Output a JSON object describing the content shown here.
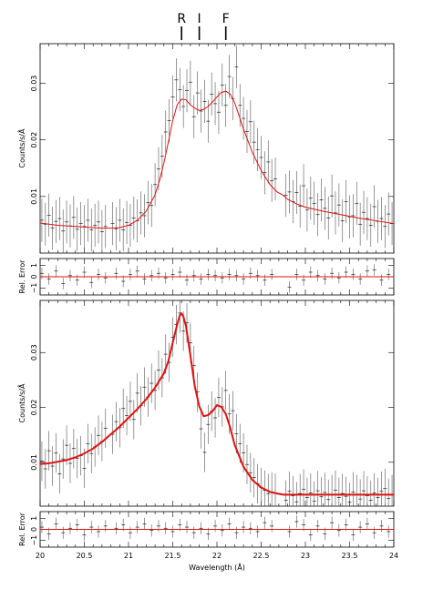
{
  "chart_data": [
    {
      "type": "scatter",
      "title": "",
      "xlabel": "",
      "ylabel": "Counts/s/Å",
      "xlim": [
        20,
        24
      ],
      "ylim": [
        0.0,
        0.037
      ],
      "yticks": [
        0.01,
        0.02,
        0.03
      ],
      "yticklabels": [
        "0.01",
        "0.02",
        "0.03"
      ],
      "markers": [
        {
          "label": "R",
          "x": 21.6
        },
        {
          "label": "I",
          "x": 21.8
        },
        {
          "label": "F",
          "x": 22.1
        }
      ],
      "gaps": [
        [
          20.76,
          20.8
        ],
        [
          22.68,
          22.75
        ]
      ],
      "series": [
        {
          "role": "data",
          "x": [
            20.02,
            20.06,
            20.1,
            20.14,
            20.18,
            20.22,
            20.26,
            20.3,
            20.34,
            20.38,
            20.42,
            20.46,
            20.5,
            20.54,
            20.58,
            20.62,
            20.66,
            20.7,
            20.74,
            20.82,
            20.86,
            20.9,
            20.94,
            20.98,
            21.02,
            21.06,
            21.1,
            21.14,
            21.18,
            21.22,
            21.26,
            21.3,
            21.34,
            21.38,
            21.42,
            21.46,
            21.5,
            21.54,
            21.58,
            21.62,
            21.66,
            21.7,
            21.74,
            21.78,
            21.82,
            21.86,
            21.9,
            21.94,
            21.98,
            22.02,
            22.06,
            22.1,
            22.14,
            22.18,
            22.22,
            22.26,
            22.3,
            22.34,
            22.38,
            22.42,
            22.46,
            22.5,
            22.54,
            22.58,
            22.62,
            22.66,
            22.78,
            22.82,
            22.86,
            22.9,
            22.94,
            22.98,
            23.02,
            23.06,
            23.1,
            23.14,
            23.18,
            23.22,
            23.26,
            23.3,
            23.34,
            23.38,
            23.42,
            23.46,
            23.5,
            23.54,
            23.58,
            23.62,
            23.66,
            23.7,
            23.74,
            23.78,
            23.82,
            23.86,
            23.9,
            23.94,
            23.98
          ],
          "y": [
            0.0058,
            0.0051,
            0.0067,
            0.0044,
            0.0056,
            0.0061,
            0.0039,
            0.0055,
            0.0048,
            0.0063,
            0.0042,
            0.0052,
            0.0047,
            0.0058,
            0.0041,
            0.0049,
            0.0055,
            0.0038,
            0.0047,
            0.0052,
            0.0043,
            0.0058,
            0.0041,
            0.0054,
            0.0049,
            0.0062,
            0.0057,
            0.0071,
            0.0066,
            0.0089,
            0.0084,
            0.0121,
            0.0149,
            0.0171,
            0.0214,
            0.0234,
            0.0276,
            0.0306,
            0.0289,
            0.0259,
            0.0287,
            0.0302,
            0.0241,
            0.0283,
            0.0251,
            0.0268,
            0.0233,
            0.0281,
            0.0264,
            0.0249,
            0.0297,
            0.0261,
            0.0312,
            0.0273,
            0.0329,
            0.0261,
            0.0238,
            0.0215,
            0.0232,
            0.0196,
            0.0183,
            0.0169,
            0.0142,
            0.0161,
            0.0128,
            0.0131,
            0.0102,
            0.0108,
            0.0091,
            0.0107,
            0.0083,
            0.0119,
            0.0076,
            0.0097,
            0.0088,
            0.0068,
            0.0094,
            0.0079,
            0.0062,
            0.0101,
            0.0071,
            0.0085,
            0.0057,
            0.0091,
            0.0064,
            0.0066,
            0.0088,
            0.0051,
            0.0072,
            0.0061,
            0.0049,
            0.0082,
            0.0056,
            0.0061,
            0.0047,
            0.0069,
            0.0052
          ],
          "yerr": 0.0038
        },
        {
          "role": "model",
          "x": [
            20.0,
            20.1,
            20.2,
            20.3,
            20.4,
            20.5,
            20.6,
            20.7,
            20.75,
            20.8,
            20.9,
            21.0,
            21.1,
            21.2,
            21.3,
            21.35,
            21.4,
            21.45,
            21.5,
            21.55,
            21.6,
            21.65,
            21.7,
            21.75,
            21.8,
            21.85,
            21.9,
            21.95,
            22.0,
            22.05,
            22.1,
            22.15,
            22.2,
            22.25,
            22.3,
            22.4,
            22.5,
            22.6,
            22.68,
            22.75,
            22.8,
            22.9,
            23.0,
            23.2,
            23.4,
            23.6,
            23.8,
            24.0
          ],
          "y": [
            0.0053,
            0.0051,
            0.0049,
            0.0048,
            0.0047,
            0.0046,
            0.0045,
            0.0044,
            0.0044,
            0.0044,
            0.0045,
            0.0049,
            0.0058,
            0.0074,
            0.0103,
            0.0128,
            0.0159,
            0.0196,
            0.0234,
            0.0262,
            0.0272,
            0.0271,
            0.0262,
            0.0256,
            0.0252,
            0.0254,
            0.0259,
            0.0267,
            0.0276,
            0.0284,
            0.0286,
            0.0281,
            0.0266,
            0.0243,
            0.0219,
            0.0178,
            0.0146,
            0.0121,
            0.0108,
            0.0102,
            0.0095,
            0.0087,
            0.0081,
            0.0074,
            0.0068,
            0.0062,
            0.0057,
            0.0052
          ]
        }
      ]
    },
    {
      "type": "scatter",
      "title": "",
      "xlabel": "",
      "ylabel": "Rel. Error",
      "xlim": [
        20,
        24
      ],
      "ylim": [
        -1.6,
        1.6
      ],
      "yticks": [
        -1,
        0,
        1
      ],
      "yticklabels": [
        "−1",
        "0",
        "1"
      ],
      "series": [
        {
          "role": "data",
          "x": [
            20.02,
            20.1,
            20.18,
            20.26,
            20.34,
            20.42,
            20.5,
            20.58,
            20.66,
            20.74,
            20.86,
            20.94,
            21.02,
            21.1,
            21.18,
            21.26,
            21.34,
            21.42,
            21.5,
            21.58,
            21.66,
            21.74,
            21.82,
            21.9,
            21.98,
            22.06,
            22.14,
            22.22,
            22.3,
            22.38,
            22.46,
            22.54,
            22.62,
            22.82,
            22.9,
            22.98,
            23.06,
            23.14,
            23.22,
            23.3,
            23.38,
            23.46,
            23.54,
            23.62,
            23.7,
            23.78,
            23.86,
            23.94
          ],
          "y": [
            0.3,
            -0.2,
            0.5,
            -0.6,
            0.1,
            -0.3,
            0.4,
            -0.5,
            0.2,
            -0.1,
            0.3,
            -0.4,
            0.2,
            0.5,
            -0.2,
            0.1,
            0.3,
            -0.1,
            0.2,
            0.4,
            -0.3,
            0.1,
            -0.2,
            0.2,
            0.1,
            -0.1,
            0.2,
            0.1,
            -0.2,
            0.3,
            0.1,
            -0.3,
            0.2,
            -0.9,
            0.2,
            -0.3,
            0.4,
            0.1,
            -0.2,
            0.3,
            -0.1,
            0.4,
            0.2,
            -0.2,
            0.5,
            0.6,
            -0.3,
            0.2
          ],
          "yerr": 0.5
        },
        {
          "role": "model",
          "x": [
            20,
            24
          ],
          "y": [
            0,
            0
          ]
        }
      ]
    },
    {
      "type": "scatter",
      "title": "",
      "xlabel": "",
      "ylabel": "Counts/s/Å",
      "xlim": [
        20,
        24
      ],
      "ylim": [
        0.002,
        0.0395
      ],
      "yticks": [
        0.01,
        0.02,
        0.03
      ],
      "yticklabels": [
        "0.01",
        "0.02",
        "0.03"
      ],
      "gaps": [
        [
          20.76,
          20.8
        ],
        [
          22.68,
          22.75
        ]
      ],
      "series": [
        {
          "role": "data",
          "x": [
            20.02,
            20.06,
            20.1,
            20.14,
            20.18,
            20.22,
            20.26,
            20.3,
            20.34,
            20.38,
            20.42,
            20.46,
            20.5,
            20.54,
            20.58,
            20.62,
            20.66,
            20.7,
            20.74,
            20.82,
            20.86,
            20.9,
            20.94,
            20.98,
            21.02,
            21.06,
            21.1,
            21.14,
            21.18,
            21.22,
            21.26,
            21.3,
            21.34,
            21.38,
            21.42,
            21.46,
            21.5,
            21.54,
            21.58,
            21.62,
            21.66,
            21.7,
            21.74,
            21.78,
            21.82,
            21.86,
            21.9,
            21.94,
            21.98,
            22.02,
            22.06,
            22.1,
            22.14,
            22.18,
            22.22,
            22.26,
            22.3,
            22.34,
            22.38,
            22.42,
            22.46,
            22.5,
            22.54,
            22.58,
            22.62,
            22.66,
            22.78,
            22.82,
            22.86,
            22.9,
            22.94,
            22.98,
            23.02,
            23.06,
            23.1,
            23.14,
            23.18,
            23.22,
            23.26,
            23.3,
            23.34,
            23.38,
            23.42,
            23.46,
            23.5,
            23.54,
            23.58,
            23.62,
            23.66,
            23.7,
            23.74,
            23.78,
            23.82,
            23.86,
            23.9,
            23.94,
            23.98
          ],
          "y": [
            0.0102,
            0.0088,
            0.0121,
            0.0093,
            0.0117,
            0.0079,
            0.0106,
            0.0131,
            0.0098,
            0.0125,
            0.0107,
            0.0112,
            0.0089,
            0.0134,
            0.0116,
            0.0128,
            0.0149,
            0.0138,
            0.0162,
            0.0151,
            0.0174,
            0.0163,
            0.0198,
            0.0185,
            0.0211,
            0.0178,
            0.0226,
            0.0203,
            0.0237,
            0.0219,
            0.0244,
            0.0231,
            0.0268,
            0.0254,
            0.0297,
            0.0282,
            0.0328,
            0.0351,
            0.0372,
            0.0339,
            0.0354,
            0.0318,
            0.0276,
            0.0228,
            0.0161,
            0.0118,
            0.0169,
            0.0193,
            0.0181,
            0.0218,
            0.0201,
            0.0231,
            0.0188,
            0.0194,
            0.0152,
            0.0134,
            0.0117,
            0.0096,
            0.0081,
            0.0072,
            0.0061,
            0.0054,
            0.0049,
            0.0043,
            0.0046,
            0.0044,
            0.0031,
            0.0047,
            0.0039,
            0.0028,
            0.0043,
            0.0051,
            0.0036,
            0.0044,
            0.0029,
            0.0048,
            0.0037,
            0.0045,
            0.0032,
            0.0041,
            0.0049,
            0.0036,
            0.0043,
            0.0038,
            0.0027,
            0.0046,
            0.0041,
            0.0033,
            0.0048,
            0.0039,
            0.0031,
            0.0044,
            0.0036,
            0.0047,
            0.0052,
            0.0034,
            0.0041
          ],
          "yerr": 0.0036
        },
        {
          "role": "model",
          "x": [
            20.0,
            20.1,
            20.2,
            20.3,
            20.4,
            20.5,
            20.6,
            20.7,
            20.75,
            20.8,
            20.9,
            21.0,
            21.1,
            21.2,
            21.3,
            21.4,
            21.45,
            21.5,
            21.55,
            21.58,
            21.6,
            21.62,
            21.65,
            21.7,
            21.75,
            21.8,
            21.85,
            21.9,
            21.95,
            22.0,
            22.05,
            22.1,
            22.15,
            22.2,
            22.3,
            22.4,
            22.5,
            22.6,
            22.68,
            22.75,
            22.8,
            22.9,
            23.0,
            23.2,
            23.4,
            23.6,
            23.8,
            24.0
          ],
          "y": [
            0.0097,
            0.0098,
            0.0101,
            0.0104,
            0.0109,
            0.0116,
            0.0125,
            0.0137,
            0.0144,
            0.0151,
            0.0165,
            0.0181,
            0.0197,
            0.0215,
            0.0236,
            0.0262,
            0.0284,
            0.0318,
            0.0351,
            0.0368,
            0.0371,
            0.0366,
            0.0348,
            0.0294,
            0.0238,
            0.0202,
            0.0184,
            0.0186,
            0.0193,
            0.0204,
            0.0201,
            0.0188,
            0.0163,
            0.0132,
            0.0092,
            0.0068,
            0.0054,
            0.0046,
            0.0043,
            0.0041,
            0.0041,
            0.0041,
            0.0041,
            0.0041,
            0.0041,
            0.0041,
            0.0041,
            0.0041
          ]
        }
      ]
    },
    {
      "type": "scatter",
      "title": "",
      "xlabel": "Wavelength (Å)",
      "ylabel": "Rel. Error",
      "xlim": [
        20,
        24
      ],
      "ylim": [
        -1.6,
        1.6
      ],
      "yticks": [
        -1,
        0,
        1
      ],
      "yticklabels": [
        "−1",
        "0",
        "1"
      ],
      "xticks": [
        20,
        20.5,
        21,
        21.5,
        22,
        22.5,
        23,
        23.5,
        24
      ],
      "xticklabels": [
        "20",
        "20.5",
        "21",
        "21.5",
        "22",
        "22.5",
        "23",
        "23.5",
        "24"
      ],
      "series": [
        {
          "role": "data",
          "x": [
            20.02,
            20.1,
            20.18,
            20.26,
            20.34,
            20.42,
            20.5,
            20.58,
            20.66,
            20.74,
            20.86,
            20.94,
            21.02,
            21.1,
            21.18,
            21.26,
            21.34,
            21.42,
            21.5,
            21.58,
            21.66,
            21.74,
            21.82,
            21.9,
            21.98,
            22.06,
            22.14,
            22.22,
            22.3,
            22.38,
            22.46,
            22.54,
            22.62,
            22.82,
            22.9,
            22.98,
            23.06,
            23.14,
            23.22,
            23.3,
            23.38,
            23.46,
            23.54,
            23.62,
            23.7,
            23.78,
            23.86,
            23.94
          ],
          "y": [
            0.2,
            -0.4,
            0.5,
            -0.3,
            0.1,
            0.4,
            -0.5,
            0.2,
            -0.2,
            0.3,
            0.1,
            0.4,
            -0.3,
            0.2,
            0.5,
            -0.1,
            0.3,
            0.1,
            -0.2,
            0.4,
            0.2,
            -0.3,
            0.1,
            -0.4,
            0.3,
            -0.1,
            0.5,
            -0.3,
            0.2,
            0.1,
            -0.2,
            0.6,
            0.3,
            -0.2,
            0.7,
            0.4,
            -0.5,
            0.3,
            -0.4,
            0.6,
            -0.1,
            0.4,
            -0.5,
            0.2,
            0.5,
            -0.3,
            0.3,
            -0.2
          ],
          "yerr": 0.55
        },
        {
          "role": "model",
          "x": [
            20,
            24
          ],
          "y": [
            0,
            0
          ]
        }
      ]
    }
  ]
}
